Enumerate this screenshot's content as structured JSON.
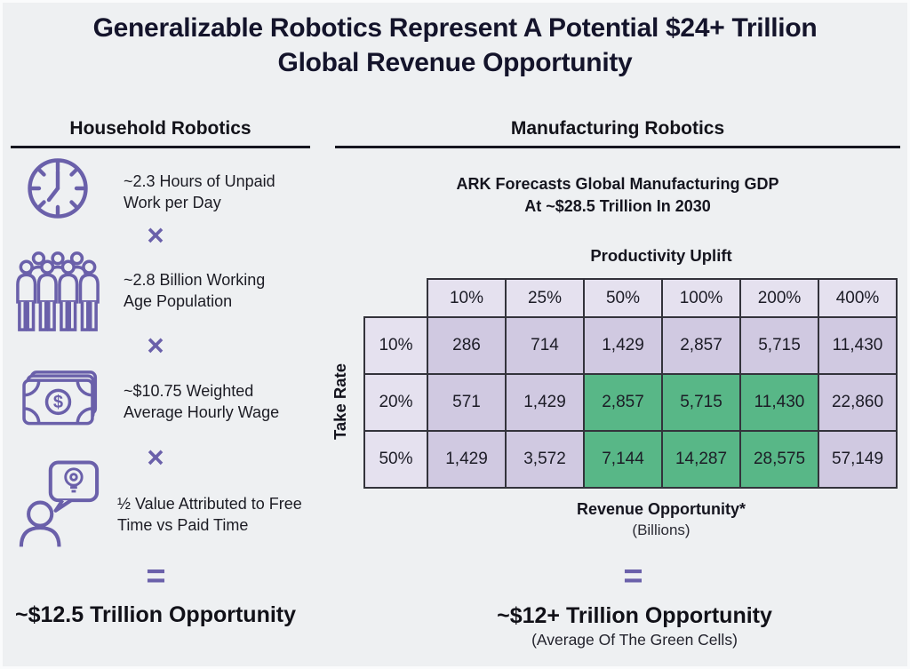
{
  "title": {
    "line1": "Generalizable Robotics Represent A Potential $24+ Trillion",
    "line2": "Global Revenue Opportunity"
  },
  "household": {
    "header": "Household Robotics",
    "multiply_symbol": "×",
    "equals_symbol": "=",
    "factors": [
      {
        "icon": "clock-icon",
        "text": "~2.3 Hours of Unpaid Work per Day"
      },
      {
        "icon": "people-icon",
        "text": "~2.8 Billion Working Age Population"
      },
      {
        "icon": "money-icon",
        "text": "~$10.75 Weighted Average Hourly Wage"
      },
      {
        "icon": "person-idea-icon",
        "text": "½ Value Attributed to Free Time vs Paid Time"
      }
    ],
    "result": "~$12.5 Trillion Opportunity"
  },
  "manufacturing": {
    "header": "Manufacturing Robotics",
    "subtitle_line1": "ARK Forecasts Global Manufacturing GDP",
    "subtitle_line2": "At ~$28.5 Trillion In 2030",
    "table_title": "Productivity Uplift",
    "row_axis_label": "Take Rate",
    "footnote_line1": "Revenue Opportunity*",
    "footnote_line2": "(Billions)",
    "equals_symbol": "=",
    "result": "~$12+ Trillion Opportunity",
    "result_note": "(Average Of The Green Cells)"
  },
  "chart_data": {
    "type": "table",
    "title": "Productivity Uplift",
    "column_axis_label": "Productivity Uplift",
    "row_axis_label": "Take Rate",
    "units": "Billions",
    "columns": [
      "10%",
      "25%",
      "50%",
      "100%",
      "200%",
      "400%"
    ],
    "rows": [
      {
        "label": "10%",
        "values": [
          286,
          714,
          1429,
          2857,
          5715,
          11430
        ],
        "green": [
          false,
          false,
          false,
          false,
          false,
          false
        ]
      },
      {
        "label": "20%",
        "values": [
          571,
          1429,
          2857,
          5715,
          11430,
          22860
        ],
        "green": [
          false,
          false,
          true,
          true,
          true,
          false
        ]
      },
      {
        "label": "50%",
        "values": [
          1429,
          3572,
          7144,
          14287,
          28575,
          57149
        ],
        "green": [
          false,
          false,
          true,
          true,
          true,
          false
        ]
      }
    ],
    "green_cells_meaning": "Average Of The Green Cells ≈ ~$12+ Trillion"
  },
  "colors": {
    "background": "#eef0f2",
    "accent_purple": "#6a60aa",
    "green_highlight": "#58b787",
    "lavender_light": "#e5e1ef",
    "lavender_mid": "#d0c9e1",
    "title_text": "#14142b"
  }
}
